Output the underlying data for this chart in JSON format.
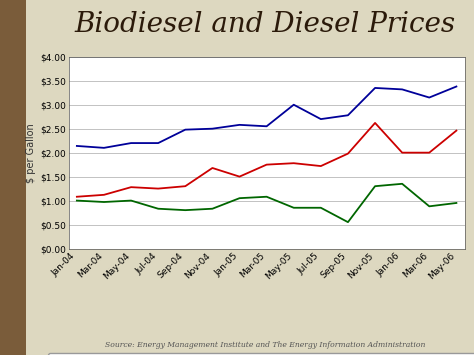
{
  "title": "Biodiesel and Diesel Prices",
  "ylabel": "$ per Gallon",
  "source": "Source: Energy Management Institute and The Energy Information Administration",
  "background_color": "#ddd8c0",
  "plot_bg_color": "#ffffff",
  "ylim": [
    0.0,
    4.0
  ],
  "yticks": [
    0.0,
    0.5,
    1.0,
    1.5,
    2.0,
    2.5,
    3.0,
    3.5,
    4.0
  ],
  "x_labels": [
    "Jan-04",
    "Mar-04",
    "May-04",
    "Jul-04",
    "Sep-04",
    "Nov-04",
    "Jan-05",
    "Mar-05",
    "May-05",
    "Jul-05",
    "Sep-05",
    "Nov-05",
    "Jan-06",
    "Mar-06",
    "May-06"
  ],
  "diesel": [
    1.08,
    1.12,
    1.28,
    1.25,
    1.3,
    1.68,
    1.5,
    1.75,
    1.78,
    1.72,
    1.98,
    2.62,
    2.0,
    2.0,
    2.46
  ],
  "b100": [
    2.14,
    2.1,
    2.2,
    2.2,
    2.48,
    2.5,
    2.58,
    2.55,
    3.0,
    2.7,
    2.78,
    3.35,
    3.32,
    3.15,
    3.38
  ],
  "spread": [
    1.0,
    0.97,
    1.0,
    0.83,
    0.8,
    0.83,
    1.05,
    1.08,
    0.85,
    0.85,
    0.55,
    1.3,
    1.35,
    0.88,
    0.95
  ],
  "diesel_color": "#cc0000",
  "b100_color": "#000099",
  "spread_color": "#006600",
  "line_width": 1.3,
  "title_fontsize": 20,
  "tick_fontsize": 6.5,
  "legend_fontsize": 7.5,
  "ylabel_fontsize": 7,
  "source_fontsize": 5.5,
  "left_strip_color": "#7a5c3a"
}
